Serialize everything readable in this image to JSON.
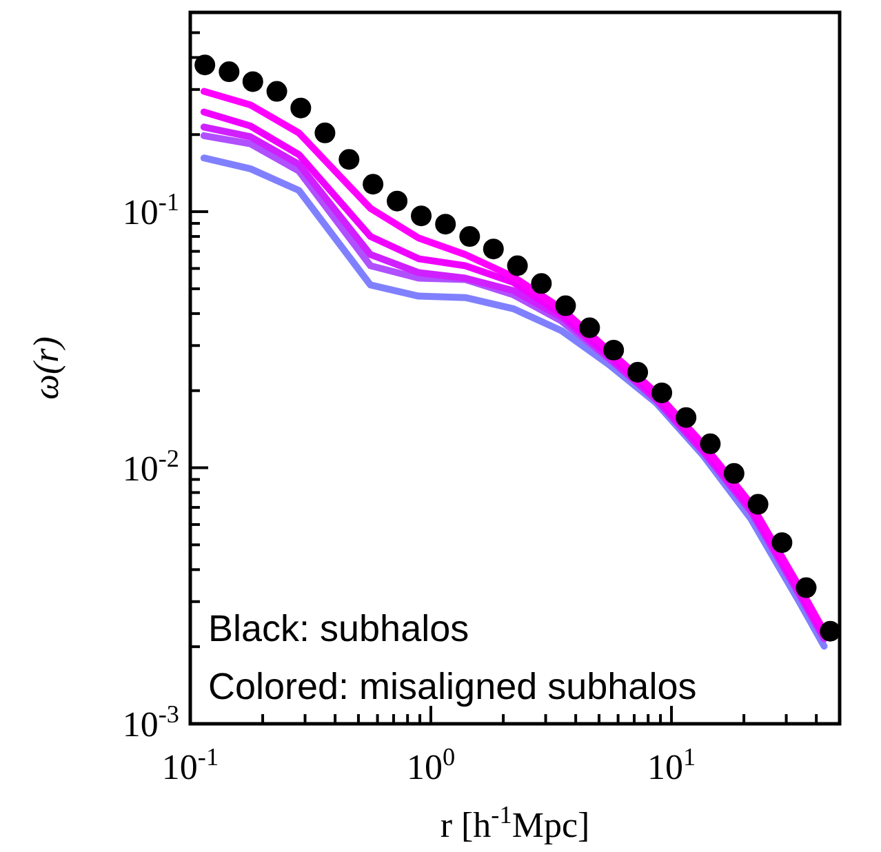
{
  "chart_data": {
    "type": "line",
    "xlabel": "r [h$^{-1}$Mpc]",
    "ylabel": "ω(r)",
    "log": "xy",
    "xlim": [
      0.1,
      50
    ],
    "ylim": [
      0.001,
      0.6
    ],
    "xticks": [
      {
        "value": 0.1,
        "label": "10$^{-1}$"
      },
      {
        "value": 0.2,
        "label": null
      },
      {
        "value": 0.3,
        "label": null
      },
      {
        "value": 0.4,
        "label": null
      },
      {
        "value": 0.5,
        "label": null
      },
      {
        "value": 0.6,
        "label": null
      },
      {
        "value": 0.7,
        "label": null
      },
      {
        "value": 0.8,
        "label": null
      },
      {
        "value": 0.9,
        "label": null
      },
      {
        "value": 1,
        "label": "10$^{0}$"
      },
      {
        "value": 2,
        "label": null
      },
      {
        "value": 3,
        "label": null
      },
      {
        "value": 4,
        "label": null
      },
      {
        "value": 5,
        "label": null
      },
      {
        "value": 6,
        "label": null
      },
      {
        "value": 7,
        "label": null
      },
      {
        "value": 8,
        "label": null
      },
      {
        "value": 9,
        "label": null
      },
      {
        "value": 10,
        "label": "10$^{1}$"
      },
      {
        "value": 20,
        "label": null
      },
      {
        "value": 30,
        "label": null
      },
      {
        "value": 40,
        "label": null
      }
    ],
    "yticks": [
      {
        "value": 0.001,
        "label": "10$^{-3}$"
      },
      {
        "value": 0.002,
        "label": null
      },
      {
        "value": 0.003,
        "label": null
      },
      {
        "value": 0.004,
        "label": null
      },
      {
        "value": 0.005,
        "label": null
      },
      {
        "value": 0.006,
        "label": null
      },
      {
        "value": 0.007,
        "label": null
      },
      {
        "value": 0.008,
        "label": null
      },
      {
        "value": 0.009,
        "label": null
      },
      {
        "value": 0.01,
        "label": "10$^{-2}$"
      },
      {
        "value": 0.02,
        "label": null
      },
      {
        "value": 0.03,
        "label": null
      },
      {
        "value": 0.04,
        "label": null
      },
      {
        "value": 0.05,
        "label": null
      },
      {
        "value": 0.06,
        "label": null
      },
      {
        "value": 0.07,
        "label": null
      },
      {
        "value": 0.08,
        "label": null
      },
      {
        "value": 0.09,
        "label": null
      },
      {
        "value": 0.1,
        "label": "10$^{-1}$"
      },
      {
        "value": 0.2,
        "label": null
      },
      {
        "value": 0.3,
        "label": null
      },
      {
        "value": 0.4,
        "label": null
      },
      {
        "value": 0.5,
        "label": null
      }
    ],
    "grid": false,
    "annotations": [
      "Black: subhalos",
      "Colored: misaligned subhalos"
    ],
    "series": [
      {
        "color": "#8080ff",
        "x": [
          0.114,
          0.178,
          0.283,
          0.561,
          0.889,
          1.39,
          2.2,
          3.49,
          5.46,
          8.65,
          13.5,
          21.4,
          34,
          43.1
        ],
        "values": [
          0.162,
          0.147,
          0.121,
          0.0517,
          0.0468,
          0.0462,
          0.0418,
          0.0343,
          0.0254,
          0.0179,
          0.0112,
          0.00631,
          0.00299,
          0.00201
        ]
      },
      {
        "color": "#b050ff",
        "x": [
          0.114,
          0.178,
          0.283,
          0.561,
          0.889,
          1.39,
          2.2,
          3.49,
          5.46,
          8.65,
          13.5,
          21.4,
          34,
          43.1
        ],
        "values": [
          0.198,
          0.184,
          0.144,
          0.0615,
          0.055,
          0.0543,
          0.0474,
          0.0374,
          0.0267,
          0.0186,
          0.0117,
          0.00672,
          0.00318,
          0.00214
        ]
      },
      {
        "color": "#d020ff",
        "x": [
          0.114,
          0.178,
          0.283,
          0.561,
          0.889,
          1.39,
          2.2,
          3.49,
          5.46,
          8.65,
          13.5,
          21.4,
          34,
          43.1
        ],
        "values": [
          0.214,
          0.196,
          0.153,
          0.068,
          0.0578,
          0.055,
          0.0492,
          0.0388,
          0.027,
          0.0184,
          0.0116,
          0.0068,
          0.00322,
          0.00216
        ]
      },
      {
        "color": "#f000ff",
        "x": [
          0.114,
          0.178,
          0.283,
          0.561,
          0.889,
          1.39,
          2.2,
          3.49,
          5.46,
          8.65,
          13.5,
          21.4,
          34,
          43.1
        ],
        "values": [
          0.245,
          0.216,
          0.167,
          0.08,
          0.0655,
          0.0615,
          0.053,
          0.0398,
          0.0277,
          0.0189,
          0.0119,
          0.00697,
          0.0033,
          0.00222
        ]
      },
      {
        "color": "#ff00ff",
        "x": [
          0.114,
          0.178,
          0.283,
          0.561,
          0.889,
          1.39,
          2.2,
          3.49,
          5.46,
          8.65,
          13.5,
          21.4,
          34,
          43.1
        ],
        "values": [
          0.295,
          0.261,
          0.203,
          0.103,
          0.0789,
          0.068,
          0.0557,
          0.0418,
          0.0288,
          0.0196,
          0.0124,
          0.00723,
          0.00343,
          0.0023
        ]
      },
      {
        "type": "scatter",
        "color": "#000000",
        "marker": "circle",
        "x": [
          0.115,
          0.145,
          0.182,
          0.229,
          0.288,
          0.363,
          0.457,
          0.575,
          0.724,
          0.912,
          1.15,
          1.45,
          1.82,
          2.29,
          2.88,
          3.63,
          4.57,
          5.75,
          7.24,
          9.12,
          11.5,
          14.5,
          18.2,
          22.9,
          28.8,
          36.3,
          45.7
        ],
        "values": [
          0.374,
          0.352,
          0.322,
          0.295,
          0.254,
          0.203,
          0.16,
          0.128,
          0.11,
          0.0963,
          0.0894,
          0.08,
          0.0715,
          0.0615,
          0.0524,
          0.0429,
          0.0352,
          0.0288,
          0.0236,
          0.0196,
          0.0157,
          0.0124,
          0.0095,
          0.0072,
          0.0051,
          0.0034,
          0.0023
        ]
      }
    ]
  }
}
